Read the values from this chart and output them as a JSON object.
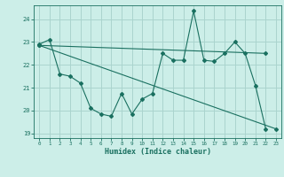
{
  "xlabel": "Humidex (Indice chaleur)",
  "background_color": "#cceee8",
  "grid_color": "#aad4ce",
  "line_color": "#1a7060",
  "xlim": [
    -0.5,
    23.5
  ],
  "ylim": [
    18.8,
    24.6
  ],
  "yticks": [
    19,
    20,
    21,
    22,
    23,
    24
  ],
  "xticks": [
    0,
    1,
    2,
    3,
    4,
    5,
    6,
    7,
    8,
    9,
    10,
    11,
    12,
    13,
    14,
    15,
    16,
    17,
    18,
    19,
    20,
    21,
    22,
    23
  ],
  "series1_x": [
    0,
    1,
    2,
    3,
    4,
    5,
    6,
    7,
    8,
    9,
    10,
    11,
    12,
    13,
    14,
    15,
    16,
    17,
    18,
    19,
    20,
    21,
    22
  ],
  "series1_y": [
    22.9,
    23.1,
    21.6,
    21.5,
    21.2,
    20.1,
    19.85,
    19.75,
    20.75,
    19.85,
    20.5,
    20.75,
    22.5,
    22.2,
    22.2,
    24.35,
    22.2,
    22.15,
    22.5,
    23.0,
    22.5,
    21.1,
    19.2
  ],
  "series2_x": [
    0,
    22
  ],
  "series2_y": [
    22.85,
    22.5
  ],
  "series3_x": [
    0,
    23
  ],
  "series3_y": [
    22.85,
    19.2
  ]
}
